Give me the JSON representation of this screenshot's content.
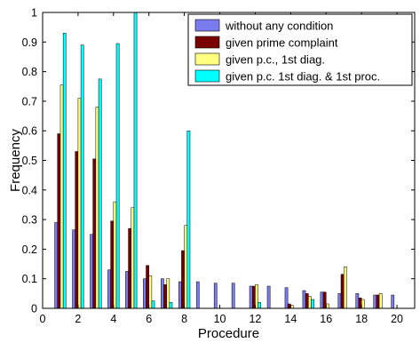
{
  "chart_data": {
    "type": "bar",
    "xlabel": "Procedure",
    "ylabel": "Frequency",
    "xlim": [
      0,
      21
    ],
    "ylim": [
      0,
      1
    ],
    "xticks": [
      "0",
      "2",
      "4",
      "6",
      "8",
      "10",
      "12",
      "14",
      "16",
      "18",
      "20"
    ],
    "yticks": [
      "0",
      "0.1",
      "0.2",
      "0.3",
      "0.4",
      "0.5",
      "0.6",
      "0.7",
      "0.8",
      "0.9",
      "1"
    ],
    "grid": false,
    "legend_position": "top-right",
    "categories": [
      1,
      2,
      3,
      4,
      5,
      6,
      7,
      8,
      9,
      10,
      11,
      12,
      13,
      14,
      15,
      16,
      17,
      18,
      19,
      20
    ],
    "series": [
      {
        "name": "without any condition",
        "color": "#7b7bf0",
        "values": [
          0.29,
          0.265,
          0.25,
          0.13,
          0.125,
          0.1,
          0.1,
          0.09,
          0.09,
          0.085,
          0.085,
          0.075,
          0.075,
          0.07,
          0.06,
          0.055,
          0.05,
          0.05,
          0.045,
          0.045
        ]
      },
      {
        "name": "given prime complaint",
        "color": "#7a0000",
        "values": [
          0.59,
          0.53,
          0.505,
          0.295,
          0.27,
          0.145,
          0.08,
          0.195,
          0,
          0,
          0,
          0.075,
          0,
          0.015,
          0.05,
          0.055,
          0.115,
          0.035,
          0.045,
          0
        ]
      },
      {
        "name": "given p.c., 1st diag.",
        "color": "#ffff80",
        "values": [
          0.755,
          0.71,
          0.68,
          0.36,
          0.34,
          0.11,
          0.1,
          0.28,
          0,
          0,
          0,
          0.08,
          0,
          0.01,
          0.04,
          0.015,
          0.14,
          0.03,
          0.05,
          0
        ]
      },
      {
        "name": "given p.c. 1st diag. & 1st proc.",
        "color": "#00ffff",
        "values": [
          0.93,
          0.89,
          0.775,
          0.895,
          1.0,
          0.025,
          0.02,
          0.6,
          0,
          0,
          0,
          0.02,
          0,
          0,
          0.03,
          0,
          0,
          0,
          0,
          0
        ]
      }
    ]
  }
}
